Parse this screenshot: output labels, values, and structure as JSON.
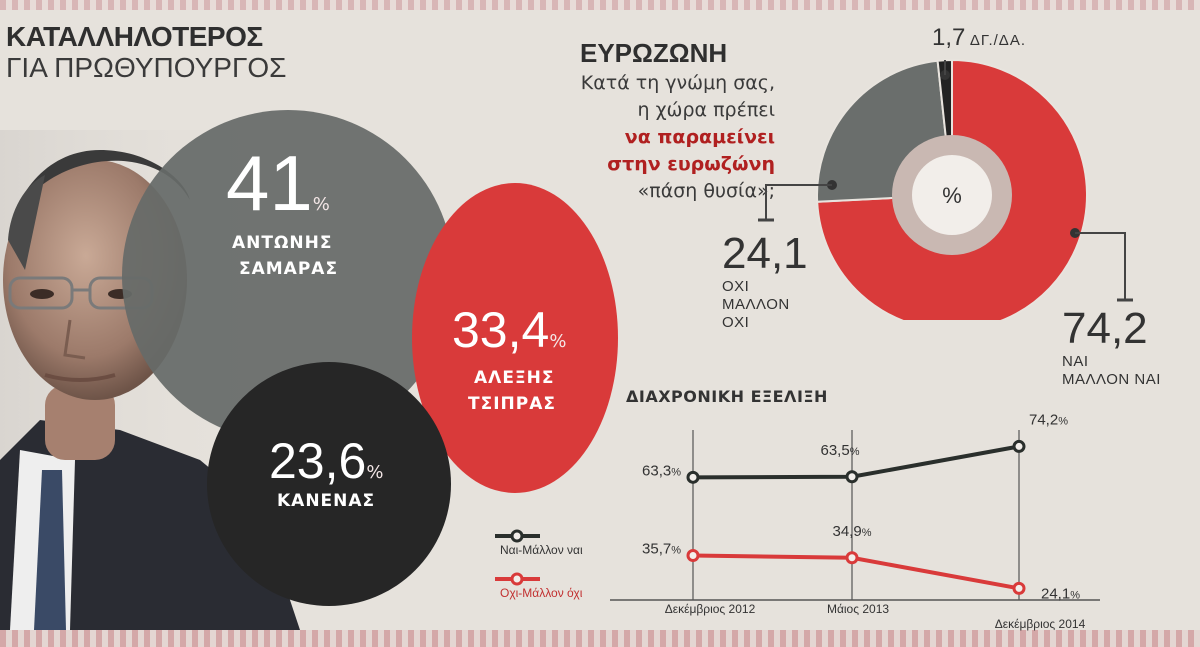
{
  "left": {
    "title_line1": "ΚΑΤΑΛΛΗΛΟΤΕΡΟΣ",
    "title_line2": "ΓΙΑ ΠΡΩΘΥΠΟΥΡΓΟΣ",
    "candidates": [
      {
        "value": "41",
        "unit": "%",
        "name_line1": "ΑΝΤΩΝΗΣ",
        "name_line2": "ΣΑΜΑΡΑΣ"
      },
      {
        "value": "33,4",
        "unit": "%",
        "name_line1": "ΑΛΕΞΗΣ",
        "name_line2": "ΤΣΙΠΡΑΣ"
      },
      {
        "value": "23,6",
        "unit": "%",
        "name_line1": "ΚΑΝΕΝΑΣ",
        "name_line2": ""
      }
    ]
  },
  "eurozone": {
    "title": "ΕΥΡΩΖΩΝΗ",
    "question_line1": "Κατά τη γνώμη σας,",
    "question_line2": "η χώρα πρέπει",
    "question_bold1": "να παραμείνει",
    "question_bold2": "στην ευρωζώνη",
    "question_line5": "«πάση θυσία»;",
    "center_label": "%",
    "yes_value": "74,2",
    "yes_line1": "ΝΑΙ",
    "yes_line2": "ΜΑΛΛΟΝ ΝΑΙ",
    "no_value": "24,1",
    "no_line1": "ΟΧΙ",
    "no_line2": "ΜΑΛΛΟΝ",
    "no_line3": "ΟΧΙ",
    "dk_value": "1,7",
    "dk_label": "ΔΓ./ΔΑ.",
    "colors": {
      "yes": "#d93a3a",
      "no": "#6a6e6c",
      "dk": "#222222"
    }
  },
  "trend": {
    "title": "ΔΙΑΧΡΟΝΙΚΗ ΕΞΕΛΙΞΗ",
    "legend_yes": "Ναι-Μάλλον ναι",
    "legend_no": "Οχι-Μάλλον όχι"
  },
  "chart_data": [
    {
      "type": "bar",
      "title": "ΚΑΤΑΛΛΗΛΟΤΕΡΟΣ ΓΙΑ ΠΡΩΘΥΠΟΥΡΓΟΣ",
      "categories": [
        "ΑΝΤΩΝΗΣ ΣΑΜΑΡΑΣ",
        "ΑΛΕΞΗΣ ΤΣΙΠΡΑΣ",
        "ΚΑΝΕΝΑΣ"
      ],
      "values": [
        41,
        33.4,
        23.6
      ]
    },
    {
      "type": "pie",
      "title": "ΕΥΡΩΖΩΝΗ",
      "categories": [
        "ΝΑΙ / ΜΑΛΛΟΝ ΝΑΙ",
        "ΟΧΙ / ΜΑΛΛΟΝ ΟΧΙ",
        "ΔΓ./ΔΑ."
      ],
      "values": [
        74.2,
        24.1,
        1.7
      ]
    },
    {
      "type": "line",
      "title": "ΔΙΑΧΡΟΝΙΚΗ ΕΞΕΛΙΞΗ",
      "categories": [
        "Δεκέμβριος 2012",
        "Μάιος 2013",
        "Δεκέμβριος 2014"
      ],
      "series": [
        {
          "name": "Ναι-Μάλλον ναι",
          "values": [
            63.3,
            63.5,
            74.2
          ],
          "labels": [
            "63,3%",
            "63,5%",
            "74,2%"
          ],
          "color": "#2a2f2c"
        },
        {
          "name": "Οχι-Μάλλον όχι",
          "values": [
            35.7,
            34.9,
            24.1
          ],
          "labels": [
            "35,7%",
            "34,9%",
            "24,1%"
          ],
          "color": "#d93a3a"
        }
      ]
    }
  ]
}
